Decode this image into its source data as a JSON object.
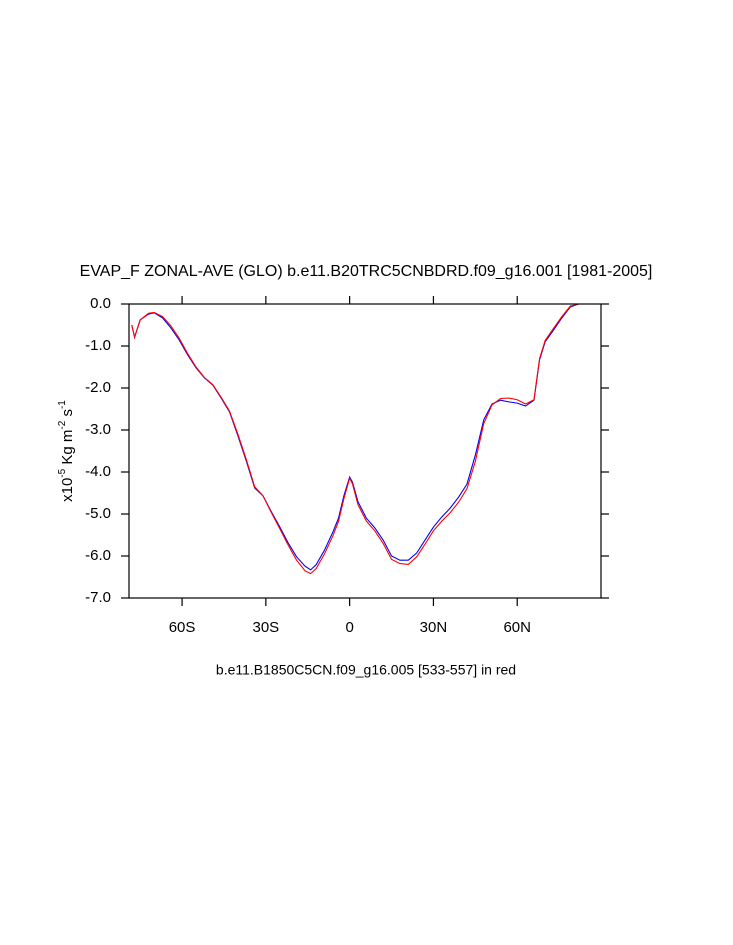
{
  "chart_data": {
    "type": "line",
    "title": "EVAP_F ZONAL-AVE (GLO) b.e11.B20TRC5CNBDRD.f09_g16.001 [1981-2005]",
    "xlabel": "b.e11.B1850C5CN.f09_g16.005 [533-557] in red",
    "ylabel": [
      "x10",
      "-5",
      " Kg m",
      "-2",
      " s",
      "-1"
    ],
    "xlim": [
      -79,
      90
    ],
    "ylim": [
      -7,
      0
    ],
    "xticks": [
      {
        "value": -60,
        "label": "60S"
      },
      {
        "value": -30,
        "label": "30S"
      },
      0,
      {
        "value": 30,
        "label": "30N"
      },
      {
        "value": 60,
        "label": "60N"
      }
    ],
    "yticks": [
      {
        "value": 0,
        "label": "0.0"
      },
      {
        "value": -1,
        "label": "-1.0"
      },
      {
        "value": -2,
        "label": "-2.0"
      },
      {
        "value": -3,
        "label": "-3.0"
      },
      {
        "value": -4,
        "label": "-4.0"
      },
      {
        "value": -5,
        "label": "-5.0"
      },
      {
        "value": -6,
        "label": "-6.0"
      },
      {
        "value": -7,
        "label": "-7.0"
      }
    ],
    "x": [
      -78,
      -77,
      -75,
      -72,
      -70,
      -67,
      -64,
      -61,
      -58,
      -55,
      -52,
      -49,
      -46,
      -43,
      -40,
      -37,
      -34,
      -31,
      -28,
      -25,
      -22,
      -19,
      -16,
      -14,
      -12,
      -9,
      -6,
      -4,
      -2,
      0,
      1,
      3,
      6,
      9,
      12,
      15,
      18,
      21,
      24,
      27,
      30,
      33,
      36,
      39,
      42,
      45,
      48,
      51,
      54,
      57,
      60,
      63,
      66,
      68,
      70,
      73,
      76,
      79,
      82,
      90
    ],
    "series": [
      {
        "color": "#0000ff",
        "values": [
          -0.5,
          -0.79,
          -0.38,
          -0.24,
          -0.21,
          -0.33,
          -0.57,
          -0.86,
          -1.21,
          -1.52,
          -1.76,
          -1.93,
          -2.24,
          -2.57,
          -3.14,
          -3.74,
          -4.38,
          -4.57,
          -4.95,
          -5.31,
          -5.69,
          -6.02,
          -6.24,
          -6.33,
          -6.21,
          -5.86,
          -5.43,
          -5.1,
          -4.55,
          -4.12,
          -4.24,
          -4.71,
          -5.1,
          -5.33,
          -5.62,
          -6.0,
          -6.1,
          -6.1,
          -5.93,
          -5.62,
          -5.31,
          -5.07,
          -4.86,
          -4.6,
          -4.29,
          -3.6,
          -2.76,
          -2.38,
          -2.29,
          -2.33,
          -2.36,
          -2.43,
          -2.29,
          -1.33,
          -0.9,
          -0.62,
          -0.33,
          -0.07,
          0,
          0
        ]
      },
      {
        "color": "#ff0000",
        "values": [
          -0.5,
          -0.79,
          -0.38,
          -0.22,
          -0.2,
          -0.3,
          -0.52,
          -0.82,
          -1.18,
          -1.5,
          -1.75,
          -1.92,
          -2.22,
          -2.55,
          -3.1,
          -3.7,
          -4.35,
          -4.57,
          -4.97,
          -5.35,
          -5.74,
          -6.1,
          -6.35,
          -6.42,
          -6.3,
          -5.95,
          -5.52,
          -5.18,
          -4.62,
          -4.15,
          -4.28,
          -4.78,
          -5.17,
          -5.4,
          -5.7,
          -6.08,
          -6.18,
          -6.2,
          -6.02,
          -5.72,
          -5.4,
          -5.17,
          -4.97,
          -4.72,
          -4.4,
          -3.75,
          -2.85,
          -2.4,
          -2.25,
          -2.24,
          -2.28,
          -2.38,
          -2.28,
          -1.3,
          -0.87,
          -0.58,
          -0.3,
          -0.05,
          0,
          0
        ]
      }
    ]
  }
}
